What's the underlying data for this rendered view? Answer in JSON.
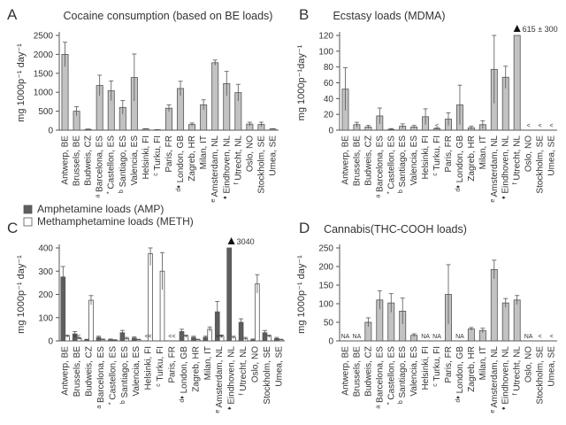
{
  "colors": {
    "bar": "#c2c2c2",
    "bar_dark": "#5e5e5e",
    "bar_white": "#ffffff",
    "stroke": "#555555",
    "text": "#333333"
  },
  "cities": [
    {
      "city": "Antwerp,",
      "cc": "BE",
      "pre": ""
    },
    {
      "city": "Brussels,",
      "cc": "BE",
      "pre": ""
    },
    {
      "city": "Budweis,",
      "cc": "CZ",
      "pre": ""
    },
    {
      "city": "Barcelona,",
      "cc": "ES",
      "pre": "a"
    },
    {
      "city": "Castellon,",
      "cc": "ES",
      "pre": "*"
    },
    {
      "city": "Santiago,",
      "cc": "ES",
      "pre": "b"
    },
    {
      "city": "Valencia,",
      "cc": "ES",
      "pre": ""
    },
    {
      "city": "Helsinki,",
      "cc": "FI",
      "pre": ""
    },
    {
      "city": "Turku,",
      "cc": "FI",
      "pre": "c"
    },
    {
      "city": "Paris,",
      "cc": "FR",
      "pre": ""
    },
    {
      "city": "London,",
      "cc": "GB",
      "pre": "d♦"
    },
    {
      "city": "Zagreb,",
      "cc": "HR",
      "pre": ""
    },
    {
      "city": "Milan,",
      "cc": "IT",
      "pre": ""
    },
    {
      "city": "Amsterdam,",
      "cc": "NL",
      "pre": "e"
    },
    {
      "city": "Eindhoven,",
      "cc": "NL",
      "pre": "♦"
    },
    {
      "city": "Utrecht,",
      "cc": "NL",
      "pre": "f"
    },
    {
      "city": "Oslo,",
      "cc": "NO",
      "pre": ""
    },
    {
      "city": "Stockholm,",
      "cc": "SE",
      "pre": ""
    },
    {
      "city": "Umea,",
      "cc": "SE",
      "pre": ""
    }
  ],
  "chart_data": [
    {
      "panel": "A",
      "type": "bar",
      "title": "Cocaine consumption (based on BE loads)",
      "ylabel": "mg 1000p⁻¹ day⁻¹",
      "ylim": [
        0,
        2500
      ],
      "yticks": [
        0,
        500,
        1000,
        1500,
        2000,
        2500
      ],
      "series": [
        {
          "name": "",
          "fill": "bar",
          "values": [
            2000,
            500,
            20,
            1180,
            1040,
            600,
            1390,
            30,
            10,
            580,
            1100,
            150,
            670,
            1780,
            1230,
            990,
            160,
            150,
            30
          ],
          "errors": [
            320,
            120,
            10,
            270,
            260,
            180,
            620,
            10,
            5,
            90,
            190,
            40,
            130,
            70,
            320,
            220,
            50,
            60,
            10
          ]
        }
      ],
      "annotations": [],
      "below_loq": []
    },
    {
      "panel": "B",
      "type": "bar",
      "title": "Ecstasy loads (MDMA)",
      "ylabel": "mg 1000p⁻¹day⁻¹",
      "ylim": [
        0,
        120
      ],
      "yticks": [
        0,
        20,
        40,
        60,
        80,
        100,
        120
      ],
      "series": [
        {
          "name": "",
          "fill": "bar",
          "values": [
            52,
            7,
            4,
            18,
            1,
            5,
            4,
            17,
            2,
            14,
            32,
            3,
            7,
            77,
            67,
            125,
            0,
            0,
            0
          ],
          "errors": [
            27,
            3,
            2,
            10,
            1,
            3,
            2,
            10,
            1,
            8,
            25,
            2,
            5,
            43,
            14,
            0,
            0,
            0,
            0
          ]
        }
      ],
      "annotations": [
        {
          "index": 15,
          "text": "615 ± 300"
        }
      ],
      "below_loq": [
        {
          "index": 16,
          "text": "<"
        },
        {
          "index": 17,
          "text": "<"
        },
        {
          "index": 18,
          "text": "<"
        },
        {
          "index": 8,
          "text": "<"
        }
      ]
    },
    {
      "panel": "C",
      "type": "bar",
      "title": "",
      "ylabel": "mg 1000p⁻¹ day⁻¹",
      "ylim": [
        0,
        400
      ],
      "yticks": [
        0,
        100,
        200,
        300,
        400
      ],
      "series": [
        {
          "name": "Amphetamine loads (AMP)",
          "fill": "bar_dark",
          "values": [
            275,
            30,
            5,
            15,
            5,
            35,
            12,
            0,
            0,
            0,
            40,
            15,
            15,
            125,
            425,
            80,
            5,
            35,
            10
          ],
          "errors": [
            45,
            10,
            2,
            5,
            3,
            10,
            5,
            0,
            0,
            0,
            10,
            5,
            5,
            45,
            0,
            15,
            3,
            10,
            5
          ]
        },
        {
          "name": "Methamphetamine loads (METH)",
          "fill": "bar_white",
          "values": [
            20,
            10,
            175,
            5,
            3,
            10,
            5,
            375,
            300,
            0,
            20,
            5,
            50,
            20,
            15,
            10,
            245,
            20,
            5
          ],
          "errors": [
            5,
            3,
            20,
            3,
            2,
            5,
            2,
            50,
            80,
            0,
            5,
            2,
            10,
            5,
            5,
            5,
            40,
            5,
            2
          ]
        }
      ],
      "annotations": [
        {
          "index": 14,
          "text": "3040"
        }
      ],
      "below_loq": [
        {
          "index": 1,
          "text": "<<"
        },
        {
          "index": 7,
          "text": "<<"
        },
        {
          "index": 9,
          "text": "<<"
        },
        {
          "index": 13,
          "text": "<<"
        }
      ]
    },
    {
      "panel": "D",
      "type": "bar",
      "title": "Cannabis(THC-COOH loads)",
      "ylabel": "mg 1000p⁻¹ day⁻¹",
      "ylim": [
        0,
        250
      ],
      "yticks": [
        0,
        50,
        100,
        150,
        200,
        250
      ],
      "series": [
        {
          "name": "",
          "fill": "bar",
          "values": [
            0,
            0,
            50,
            110,
            102,
            80,
            15,
            0,
            0,
            125,
            0,
            32,
            28,
            192,
            102,
            110,
            0,
            0,
            0
          ],
          "errors": [
            0,
            0,
            12,
            25,
            25,
            35,
            4,
            0,
            0,
            80,
            0,
            4,
            6,
            25,
            12,
            12,
            0,
            0,
            0
          ]
        }
      ],
      "annotations": [],
      "below_loq": [
        {
          "index": 0,
          "text": "NA"
        },
        {
          "index": 1,
          "text": "NA"
        },
        {
          "index": 7,
          "text": "NA"
        },
        {
          "index": 8,
          "text": "NA"
        },
        {
          "index": 10,
          "text": "NA"
        },
        {
          "index": 16,
          "text": "NA"
        },
        {
          "index": 17,
          "text": "<"
        },
        {
          "index": 18,
          "text": "<"
        }
      ]
    }
  ],
  "panels": [
    {
      "letter": "A"
    },
    {
      "letter": "B"
    },
    {
      "letter": "C"
    },
    {
      "letter": "D"
    }
  ]
}
